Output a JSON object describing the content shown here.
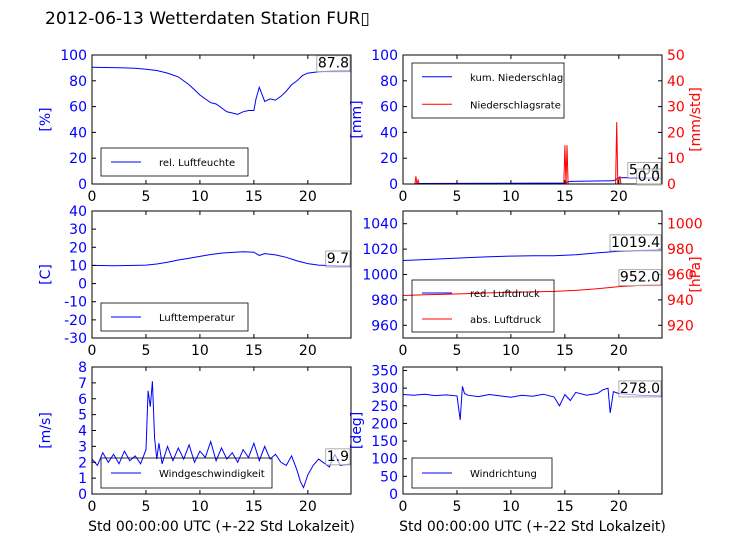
{
  "title": "2012-06-13 Wetterdaten Station FUR▯",
  "chart_data": [
    {
      "id": "humidity",
      "type": "line",
      "xlim": [
        0,
        24
      ],
      "xticks": [
        0,
        5,
        10,
        15,
        20
      ],
      "ylim": [
        0,
        100
      ],
      "yticks": [
        0,
        20,
        40,
        60,
        80,
        100
      ],
      "ylabel": "[%]",
      "legend": [
        "rel. Luftfeuchte"
      ],
      "legend_position": "lower-left",
      "last_value": "87.8",
      "series": [
        {
          "name": "rel. Luftfeuchte",
          "color": "#0000ff",
          "x": [
            0,
            1,
            2,
            3,
            4,
            5,
            6,
            7,
            8,
            9,
            9.5,
            10,
            10.5,
            11,
            11.5,
            12,
            12.5,
            13,
            13.5,
            14,
            14.5,
            15,
            15.2,
            15.5,
            16,
            16.5,
            17,
            17.5,
            18,
            18.5,
            19,
            19.5,
            20,
            21,
            22,
            23,
            24
          ],
          "y": [
            90.5,
            90.3,
            90.2,
            90,
            89.8,
            89,
            88,
            86,
            83,
            77,
            73,
            69,
            66,
            63,
            62,
            59,
            56,
            55,
            54,
            56,
            57,
            57,
            66,
            75,
            64,
            66,
            65,
            68,
            72,
            77,
            80,
            84,
            86,
            87,
            87.5,
            87.8,
            87.8
          ]
        }
      ]
    },
    {
      "id": "precipitation",
      "type": "line",
      "xlim": [
        0,
        24
      ],
      "xticks": [
        0,
        5,
        10,
        15,
        20
      ],
      "ylim": [
        0,
        100
      ],
      "yticks": [
        0,
        20,
        40,
        60,
        80,
        100
      ],
      "ylabel": "[mm]",
      "y2lim": [
        0,
        50
      ],
      "y2ticks": [
        0,
        10,
        20,
        30,
        40,
        50
      ],
      "y2label": "[mm/std]",
      "legend": [
        "kum. Niederschlag",
        "Niederschlagsrate"
      ],
      "legend_position": "upper-left",
      "last_value": "5.04",
      "last_value_2": "0.0",
      "series": [
        {
          "name": "kum. Niederschlag",
          "color": "#0000ff",
          "axis": "left",
          "x": [
            0,
            1,
            1.2,
            1.5,
            5,
            10,
            15,
            15.2,
            15.5,
            19.5,
            19.8,
            20,
            24
          ],
          "y": [
            0,
            0,
            0.3,
            0.4,
            0.5,
            0.6,
            0.8,
            1.5,
            2,
            2.5,
            3.8,
            4.8,
            5.04
          ]
        },
        {
          "name": "Niederschlagsrate",
          "color": "#ff0000",
          "axis": "right",
          "x": [
            0,
            1.1,
            1.2,
            1.3,
            1.4,
            1.5,
            14.9,
            15,
            15.1,
            15.2,
            15.3,
            15.4,
            19.6,
            19.7,
            19.8,
            19.9,
            20,
            20.1,
            20.2,
            24
          ],
          "y": [
            0,
            0,
            3,
            0,
            1.5,
            0,
            0,
            15,
            0,
            15,
            0,
            0,
            0,
            0,
            24,
            0,
            1.5,
            3,
            0,
            0
          ]
        }
      ]
    },
    {
      "id": "temperature",
      "type": "line",
      "xlim": [
        0,
        24
      ],
      "xticks": [
        0,
        5,
        10,
        15,
        20
      ],
      "ylim": [
        -30,
        40
      ],
      "yticks": [
        -30,
        -20,
        -10,
        0,
        10,
        20,
        30,
        40
      ],
      "ylabel": "[C]",
      "legend": [
        "Lufttemperatur"
      ],
      "legend_position": "lower-left",
      "last_value": "9.7",
      "series": [
        {
          "name": "Lufttemperatur",
          "color": "#0000ff",
          "x": [
            0,
            2,
            4,
            5,
            6,
            7,
            8,
            9,
            10,
            11,
            12,
            13,
            14,
            15,
            15.5,
            16,
            17,
            18,
            19,
            20,
            21,
            22,
            23,
            24
          ],
          "y": [
            10,
            9.8,
            10,
            10.2,
            10.8,
            11.8,
            13,
            14,
            15,
            16,
            16.8,
            17.2,
            17.5,
            17.3,
            15.5,
            16.5,
            15.8,
            14.5,
            12.5,
            11,
            10.2,
            9.9,
            9.7,
            9.7
          ]
        }
      ]
    },
    {
      "id": "pressure",
      "type": "line",
      "xlim": [
        0,
        24
      ],
      "xticks": [
        0,
        5,
        10,
        15,
        20
      ],
      "ylim": [
        950,
        1050
      ],
      "yticks": [
        960,
        980,
        1000,
        1020,
        1040
      ],
      "y2lim": [
        910,
        1010
      ],
      "y2ticks": [
        920,
        940,
        960,
        980,
        1000
      ],
      "y2label": "[hPa]",
      "legend": [
        "red. Luftdruck",
        "abs. Luftdruck"
      ],
      "legend_position": "lower-left",
      "last_value": "1019.4",
      "last_value_2": "952.0",
      "series": [
        {
          "name": "red. Luftdruck",
          "color": "#0000ff",
          "axis": "left",
          "x": [
            0,
            2,
            4,
            6,
            8,
            10,
            12,
            14,
            16,
            18,
            20,
            22,
            24
          ],
          "y": [
            1011,
            1011.7,
            1012.5,
            1013.3,
            1014,
            1014.5,
            1014.8,
            1014.8,
            1015.5,
            1017,
            1018.3,
            1019,
            1019.4
          ]
        },
        {
          "name": "abs. Luftdruck",
          "color": "#ff0000",
          "axis": "right",
          "x": [
            0,
            2,
            4,
            6,
            8,
            10,
            12,
            14,
            16,
            18,
            20,
            22,
            24
          ],
          "y": [
            943.5,
            944,
            944.5,
            945,
            945.5,
            946,
            946.3,
            946.7,
            947.5,
            948.8,
            950.5,
            951.5,
            952
          ]
        }
      ]
    },
    {
      "id": "windspeed",
      "type": "line",
      "xlim": [
        0,
        24
      ],
      "xticks": [
        0,
        5,
        10,
        15,
        20
      ],
      "ylim": [
        0,
        8
      ],
      "yticks": [
        0,
        1,
        2,
        3,
        4,
        5,
        6,
        7,
        8
      ],
      "ylabel": "[m/s]",
      "legend": [
        "Windgeschwindigkeit"
      ],
      "legend_position": "lower-left",
      "last_value": "1.9",
      "series": [
        {
          "name": "Windgeschwindigkeit",
          "color": "#0000ff",
          "x": [
            0,
            0.5,
            1,
            1.5,
            2,
            2.5,
            3,
            3.5,
            4,
            4.5,
            5,
            5.2,
            5.4,
            5.6,
            5.8,
            6,
            6.2,
            6.5,
            7,
            7.5,
            8,
            8.5,
            9,
            9.5,
            10,
            10.5,
            11,
            11.5,
            12,
            12.5,
            13,
            13.5,
            14,
            14.5,
            15,
            15.5,
            16,
            16.5,
            17,
            17.5,
            18,
            18.5,
            19,
            19.3,
            19.6,
            20,
            20.5,
            21,
            22,
            22.5,
            23,
            24
          ],
          "y": [
            2.2,
            1.8,
            2.6,
            2.0,
            2.5,
            1.9,
            2.7,
            2.1,
            2.4,
            1.9,
            2.8,
            6.5,
            5.5,
            7.1,
            3.5,
            2.2,
            3.2,
            1.9,
            3.0,
            2.1,
            2.9,
            2.2,
            3.1,
            2.0,
            2.7,
            2.3,
            3.3,
            2.1,
            2.9,
            2.2,
            2.6,
            2.0,
            2.8,
            2.3,
            3.2,
            2.1,
            3.0,
            2.2,
            2.5,
            2.0,
            1.8,
            2.4,
            1.5,
            0.8,
            0.4,
            1.2,
            1.8,
            2.2,
            1.7,
            2.5,
            1.8,
            1.9
          ]
        }
      ]
    },
    {
      "id": "winddirection",
      "type": "line",
      "xlim": [
        0,
        24
      ],
      "xticks": [
        0,
        5,
        10,
        15,
        20
      ],
      "ylim": [
        0,
        360
      ],
      "yticks": [
        0,
        50,
        100,
        150,
        200,
        250,
        300,
        350
      ],
      "ylabel": "[deg]",
      "legend": [
        "Windrichtung"
      ],
      "legend_position": "lower-left",
      "last_value": "278.0",
      "series": [
        {
          "name": "Windrichtung",
          "color": "#0000ff",
          "x": [
            0,
            1,
            2,
            3,
            4,
            5,
            5.3,
            5.5,
            5.7,
            6,
            7,
            8,
            9,
            10,
            11,
            12,
            13,
            14,
            14.5,
            15,
            15.5,
            16,
            17,
            18,
            18.5,
            19,
            19.2,
            19.5,
            20,
            21,
            22,
            23,
            24
          ],
          "y": [
            282,
            280,
            283,
            279,
            281,
            278,
            210,
            305,
            285,
            280,
            276,
            282,
            278,
            274,
            280,
            277,
            283,
            275,
            250,
            282,
            265,
            288,
            280,
            285,
            295,
            300,
            230,
            290,
            285,
            282,
            280,
            279,
            278
          ]
        }
      ]
    }
  ],
  "footer": {
    "xlabel_left": "Std 00:00:00 UTC (+-22 Std Lokalzeit)",
    "xlabel_right": "Std 00:00:00 UTC (+-22 Std Lokalzeit)"
  }
}
